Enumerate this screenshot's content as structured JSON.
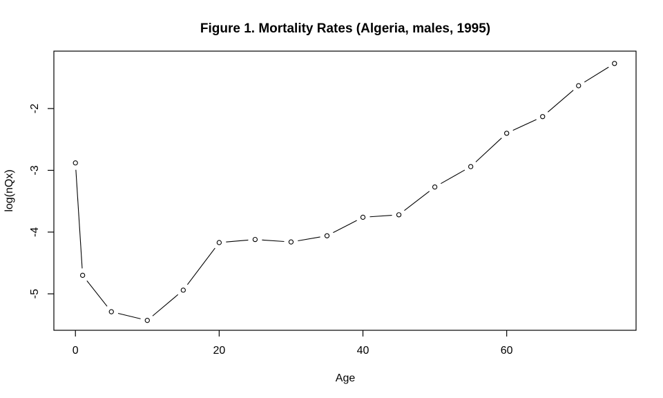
{
  "figure": {
    "background": "#ffffff",
    "foreground": "#000000"
  },
  "chart_data": {
    "type": "line",
    "title": "Figure 1. Mortality Rates (Algeria, males, 1995)",
    "xlabel": "Age",
    "ylabel": "log(nQx)",
    "series": [
      {
        "name": "mortality-algeria-males-1995",
        "x": [
          0,
          1,
          5,
          10,
          15,
          20,
          25,
          30,
          35,
          40,
          45,
          50,
          55,
          60,
          65,
          70,
          75
        ],
        "y": [
          -2.88,
          -4.7,
          -5.29,
          -5.43,
          -4.94,
          -4.17,
          -4.12,
          -4.16,
          -4.06,
          -3.76,
          -3.72,
          -3.27,
          -2.94,
          -2.4,
          -2.13,
          -1.63,
          -1.27
        ]
      }
    ],
    "xlim": [
      -3,
      78
    ],
    "ylim": [
      -5.59,
      -1.07
    ],
    "xticks": [
      0,
      20,
      40,
      60
    ],
    "yticks": [
      -5,
      -4,
      -3,
      -2
    ],
    "marker": "open-circle",
    "line_color": "#000000",
    "marker_color": "#000000",
    "text_color": "#000000",
    "grid": false,
    "legend": false
  }
}
